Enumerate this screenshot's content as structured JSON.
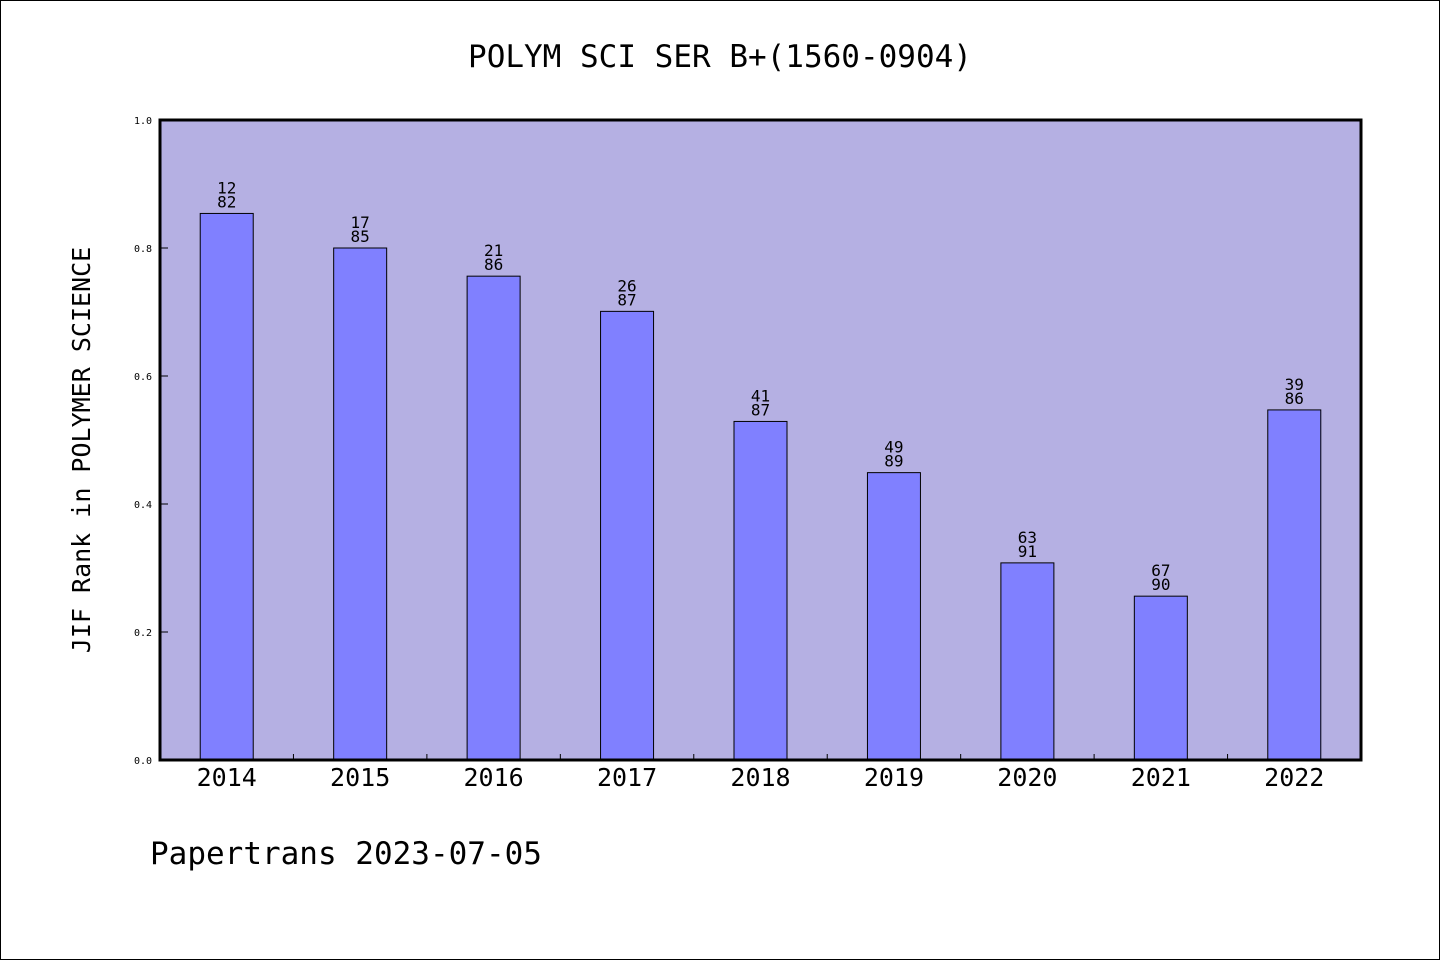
{
  "chart_data": {
    "type": "bar",
    "title": "POLYM SCI SER B+(1560-0904)",
    "xlabel": "",
    "ylabel": "JIF Rank in POLYMER SCIENCE",
    "ylim": [
      0,
      1.0
    ],
    "yticks": [
      "0.0",
      "0.2",
      "0.4",
      "0.6",
      "0.8",
      "1.0"
    ],
    "grid": false,
    "legend": "none",
    "categories": [
      "2014",
      "2015",
      "2016",
      "2017",
      "2018",
      "2019",
      "2020",
      "2021",
      "2022"
    ],
    "values": [
      0.854,
      0.8,
      0.756,
      0.701,
      0.529,
      0.449,
      0.308,
      0.256,
      0.547
    ],
    "rank_labels": [
      {
        "rank": "12",
        "total": "82"
      },
      {
        "rank": "17",
        "total": "85"
      },
      {
        "rank": "21",
        "total": "86"
      },
      {
        "rank": "26",
        "total": "87"
      },
      {
        "rank": "41",
        "total": "87"
      },
      {
        "rank": "49",
        "total": "89"
      },
      {
        "rank": "63",
        "total": "91"
      },
      {
        "rank": "67",
        "total": "90"
      },
      {
        "rank": "39",
        "total": "86"
      }
    ],
    "colors": {
      "plot_background": "#b5b0e3",
      "bar_fill": "#8080ff",
      "bar_stroke": "#000000"
    }
  },
  "footer": "Papertrans 2023-07-05"
}
